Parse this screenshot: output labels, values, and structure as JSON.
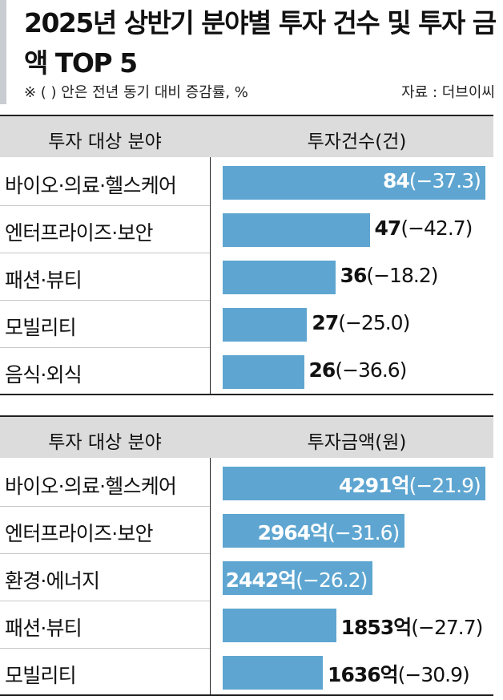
{
  "title": "2025년 상반기 분야별 투자 건수 및 투자 금액 TOP 5",
  "note": "※ (   ) 안은 전년 동기 대비 증감률, %",
  "source": "자료 : 더브이씨",
  "colors": {
    "bar": "#5ea6d1",
    "header_bg": "#dcdcdc"
  },
  "chart_data": [
    {
      "type": "bar",
      "orientation": "horizontal",
      "header_left": "투자 대상 분야",
      "header_right": "투자건수(건)",
      "unit": "",
      "categories": [
        "바이오·의료·헬스케어",
        "엔터프라이즈·보안",
        "패션·뷰티",
        "모빌리티",
        "음식·외식"
      ],
      "values": [
        84,
        47,
        36,
        27,
        26
      ],
      "value_labels": [
        "84",
        "47",
        "36",
        "27",
        "26"
      ],
      "changes": [
        "(−37.3)",
        "(−42.7)",
        "(−18.2)",
        "(−25.0)",
        "(−36.6)"
      ],
      "label_inside": [
        true,
        false,
        false,
        false,
        false
      ]
    },
    {
      "type": "bar",
      "orientation": "horizontal",
      "header_left": "투자 대상 분야",
      "header_right": "투자금액(원)",
      "unit": "억",
      "categories": [
        "바이오·의료·헬스케어",
        "엔터프라이즈·보안",
        "환경·에너지",
        "패션·뷰티",
        "모빌리티"
      ],
      "values": [
        4291,
        2964,
        2442,
        1853,
        1636
      ],
      "value_labels": [
        "4291",
        "2964",
        "2442",
        "1853",
        "1636"
      ],
      "changes": [
        "(−21.9)",
        "(−31.6)",
        "(−26.2)",
        "(−27.7)",
        "(−30.9)"
      ],
      "label_inside": [
        true,
        true,
        true,
        false,
        false
      ]
    }
  ]
}
